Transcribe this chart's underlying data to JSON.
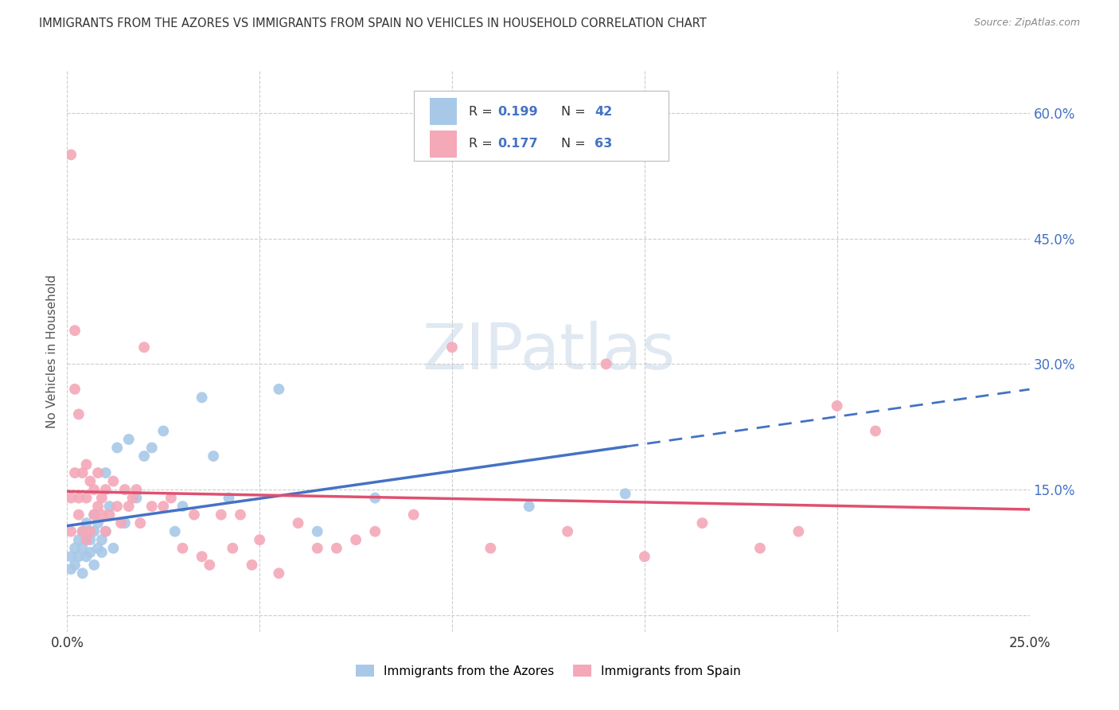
{
  "title": "IMMIGRANTS FROM THE AZORES VS IMMIGRANTS FROM SPAIN NO VEHICLES IN HOUSEHOLD CORRELATION CHART",
  "source": "Source: ZipAtlas.com",
  "ylabel": "No Vehicles in Household",
  "xlim": [
    0.0,
    0.25
  ],
  "ylim": [
    -0.02,
    0.65
  ],
  "xtick_positions": [
    0.0,
    0.05,
    0.1,
    0.15,
    0.2,
    0.25
  ],
  "xticklabels": [
    "0.0%",
    "",
    "",
    "",
    "",
    "25.0%"
  ],
  "ytick_positions": [
    0.0,
    0.15,
    0.3,
    0.45,
    0.6
  ],
  "ytick_right_labels": [
    "",
    "15.0%",
    "30.0%",
    "45.0%",
    "60.0%"
  ],
  "azores_R": "0.199",
  "azores_N": "42",
  "spain_R": "0.177",
  "spain_N": "63",
  "azores_scatter_color": "#a8c8e8",
  "spain_scatter_color": "#f4a8b8",
  "azores_line_color": "#4472c4",
  "spain_line_color": "#e05070",
  "right_axis_color": "#4472c4",
  "legend_text_color": "#4472c4",
  "legend_label_color": "#333333",
  "watermark_color": "#c8d8e8",
  "background_color": "#ffffff",
  "grid_color": "#cccccc",
  "title_color": "#333333",
  "source_color": "#888888",
  "legend_azores_label": "Immigrants from the Azores",
  "legend_spain_label": "Immigrants from Spain",
  "azores_x": [
    0.001,
    0.001,
    0.002,
    0.002,
    0.003,
    0.003,
    0.004,
    0.004,
    0.004,
    0.005,
    0.005,
    0.005,
    0.006,
    0.006,
    0.007,
    0.007,
    0.007,
    0.008,
    0.008,
    0.009,
    0.009,
    0.01,
    0.01,
    0.011,
    0.012,
    0.013,
    0.015,
    0.016,
    0.018,
    0.02,
    0.022,
    0.025,
    0.028,
    0.03,
    0.035,
    0.038,
    0.042,
    0.055,
    0.065,
    0.08,
    0.12,
    0.145
  ],
  "azores_y": [
    0.055,
    0.07,
    0.06,
    0.08,
    0.07,
    0.09,
    0.05,
    0.08,
    0.1,
    0.07,
    0.09,
    0.11,
    0.075,
    0.09,
    0.06,
    0.1,
    0.12,
    0.08,
    0.11,
    0.075,
    0.09,
    0.1,
    0.17,
    0.13,
    0.08,
    0.2,
    0.11,
    0.21,
    0.14,
    0.19,
    0.2,
    0.22,
    0.1,
    0.13,
    0.26,
    0.19,
    0.14,
    0.27,
    0.1,
    0.14,
    0.13,
    0.145
  ],
  "spain_x": [
    0.001,
    0.001,
    0.001,
    0.002,
    0.002,
    0.002,
    0.003,
    0.003,
    0.003,
    0.004,
    0.004,
    0.005,
    0.005,
    0.005,
    0.006,
    0.006,
    0.007,
    0.007,
    0.008,
    0.008,
    0.009,
    0.009,
    0.01,
    0.01,
    0.011,
    0.012,
    0.013,
    0.014,
    0.015,
    0.016,
    0.017,
    0.018,
    0.019,
    0.02,
    0.022,
    0.025,
    0.027,
    0.03,
    0.033,
    0.035,
    0.037,
    0.04,
    0.043,
    0.045,
    0.048,
    0.05,
    0.055,
    0.06,
    0.065,
    0.07,
    0.075,
    0.08,
    0.09,
    0.1,
    0.11,
    0.13,
    0.14,
    0.15,
    0.165,
    0.18,
    0.19,
    0.2,
    0.21
  ],
  "spain_y": [
    0.1,
    0.55,
    0.14,
    0.27,
    0.17,
    0.34,
    0.24,
    0.14,
    0.12,
    0.1,
    0.17,
    0.14,
    0.09,
    0.18,
    0.1,
    0.16,
    0.12,
    0.15,
    0.13,
    0.17,
    0.12,
    0.14,
    0.1,
    0.15,
    0.12,
    0.16,
    0.13,
    0.11,
    0.15,
    0.13,
    0.14,
    0.15,
    0.11,
    0.32,
    0.13,
    0.13,
    0.14,
    0.08,
    0.12,
    0.07,
    0.06,
    0.12,
    0.08,
    0.12,
    0.06,
    0.09,
    0.05,
    0.11,
    0.08,
    0.08,
    0.09,
    0.1,
    0.12,
    0.32,
    0.08,
    0.1,
    0.3,
    0.07,
    0.11,
    0.08,
    0.1,
    0.25,
    0.22
  ]
}
